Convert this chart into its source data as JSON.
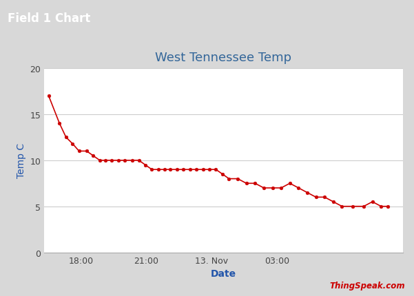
{
  "title": "West Tennessee Temp",
  "xlabel": "Date",
  "ylabel": "Temp C",
  "header_title": "Field 1 Chart",
  "watermark": "ThingSpeak.com",
  "header_bg": "#1B5BB5",
  "header_text_color": "#FFFFFF",
  "chart_bg": "#FFFFFF",
  "outer_bg": "#D8D8D8",
  "card_bg": "#FFFFFF",
  "line_color": "#CC0000",
  "marker_color": "#CC0000",
  "title_color": "#336699",
  "axis_label_color": "#2255AA",
  "watermark_color": "#CC0000",
  "grid_color": "#CCCCCC",
  "ylim": [
    0,
    20
  ],
  "yticks": [
    0,
    5,
    10,
    15,
    20
  ],
  "xtick_labels": [
    "18:00",
    "21:00",
    "13. Nov",
    "03:00"
  ],
  "data_x_hours": [
    16.5,
    17.0,
    17.3,
    17.6,
    17.9,
    18.25,
    18.55,
    18.85,
    19.1,
    19.4,
    19.7,
    20.0,
    20.35,
    20.65,
    20.95,
    21.25,
    21.55,
    21.85,
    22.1,
    22.4,
    22.7,
    23.0,
    23.3,
    23.6,
    23.9,
    24.2,
    24.5,
    24.8,
    25.2,
    25.6,
    26.0,
    26.4,
    26.8,
    27.2,
    27.6,
    28.0,
    28.4,
    28.8,
    29.2,
    29.6,
    30.0,
    30.5,
    31.0,
    31.4,
    31.8,
    32.1
  ],
  "data_y": [
    17.0,
    14.0,
    12.5,
    11.8,
    11.0,
    11.0,
    10.5,
    10.0,
    10.0,
    10.0,
    10.0,
    10.0,
    10.0,
    10.0,
    9.5,
    9.0,
    9.0,
    9.0,
    9.0,
    9.0,
    9.0,
    9.0,
    9.0,
    9.0,
    9.0,
    9.0,
    8.5,
    8.0,
    8.0,
    7.5,
    7.5,
    7.0,
    7.0,
    7.0,
    7.5,
    7.0,
    6.5,
    6.0,
    6.0,
    5.5,
    5.0,
    5.0,
    5.0,
    5.5,
    5.0,
    5.0
  ],
  "xtick_positions_hours": [
    18.0,
    21.0,
    24.0,
    27.0
  ],
  "xlim": [
    16.3,
    32.8
  ],
  "line_width": 1.2,
  "marker_size": 3.5,
  "title_fontsize": 13,
  "axis_label_fontsize": 10,
  "tick_fontsize": 9,
  "watermark_fontsize": 8.5,
  "header_fontsize": 12
}
